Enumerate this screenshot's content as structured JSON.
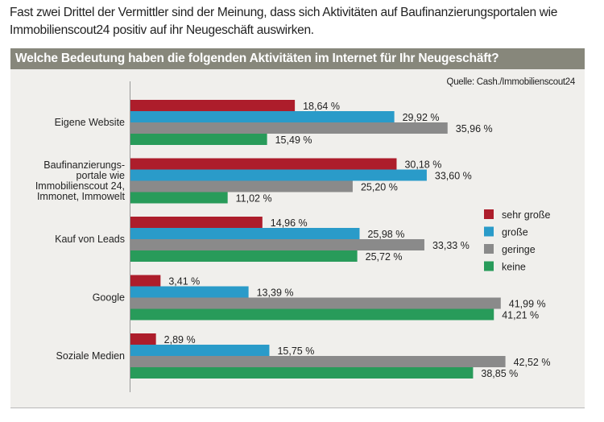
{
  "intro_text": "Fast zwei Drittel der Vermittler sind der Meinung, dass sich Aktivitäten auf Baufinanzierungsportalen wie Immobilienscout24 positiv auf ihr Neugeschäft auswirken.",
  "chart_data": {
    "type": "bar",
    "orientation": "horizontal",
    "title": "Welche Bedeutung haben die folgenden Aktivitäten im Internet für Ihr Neugeschäft?",
    "source": "Quelle: Cash./Immobilienscout24",
    "xlabel": "",
    "ylabel": "",
    "unit": "%",
    "xlim": [
      0,
      45
    ],
    "grid": false,
    "legend_position": "right",
    "categories": [
      [
        "Eigene Website"
      ],
      [
        "Baufinanzierungs-",
        "portale wie",
        "Immobilienscout 24,",
        "Immonet, Immowelt"
      ],
      [
        "Kauf von Leads"
      ],
      [
        "Google"
      ],
      [
        "Soziale Medien"
      ]
    ],
    "series": [
      {
        "name": "sehr große",
        "color": "#ad1d2b",
        "values": [
          18.64,
          30.18,
          14.96,
          3.41,
          2.89
        ],
        "labels": [
          "18,64 %",
          "30,18 %",
          "14,96 %",
          "3,41 %",
          "2,89 %"
        ]
      },
      {
        "name": "große",
        "color": "#2a9bc9",
        "values": [
          29.92,
          33.6,
          25.98,
          13.39,
          15.75
        ],
        "labels": [
          "29,92 %",
          "33,60 %",
          "25,98 %",
          "13,39 %",
          "15,75 %"
        ]
      },
      {
        "name": "geringe",
        "color": "#8a8a8a",
        "values": [
          35.96,
          25.2,
          33.33,
          41.99,
          42.52
        ],
        "labels": [
          "35,96 %",
          "25,20 %",
          "33,33 %",
          "41,99 %",
          "42,52 %"
        ]
      },
      {
        "name": "keine",
        "color": "#289b5a",
        "values": [
          15.49,
          11.02,
          25.72,
          41.21,
          38.85
        ],
        "labels": [
          "15,49 %",
          "11,02 %",
          "25,72 %",
          "41,21 %",
          "38,85 %"
        ]
      }
    ]
  }
}
